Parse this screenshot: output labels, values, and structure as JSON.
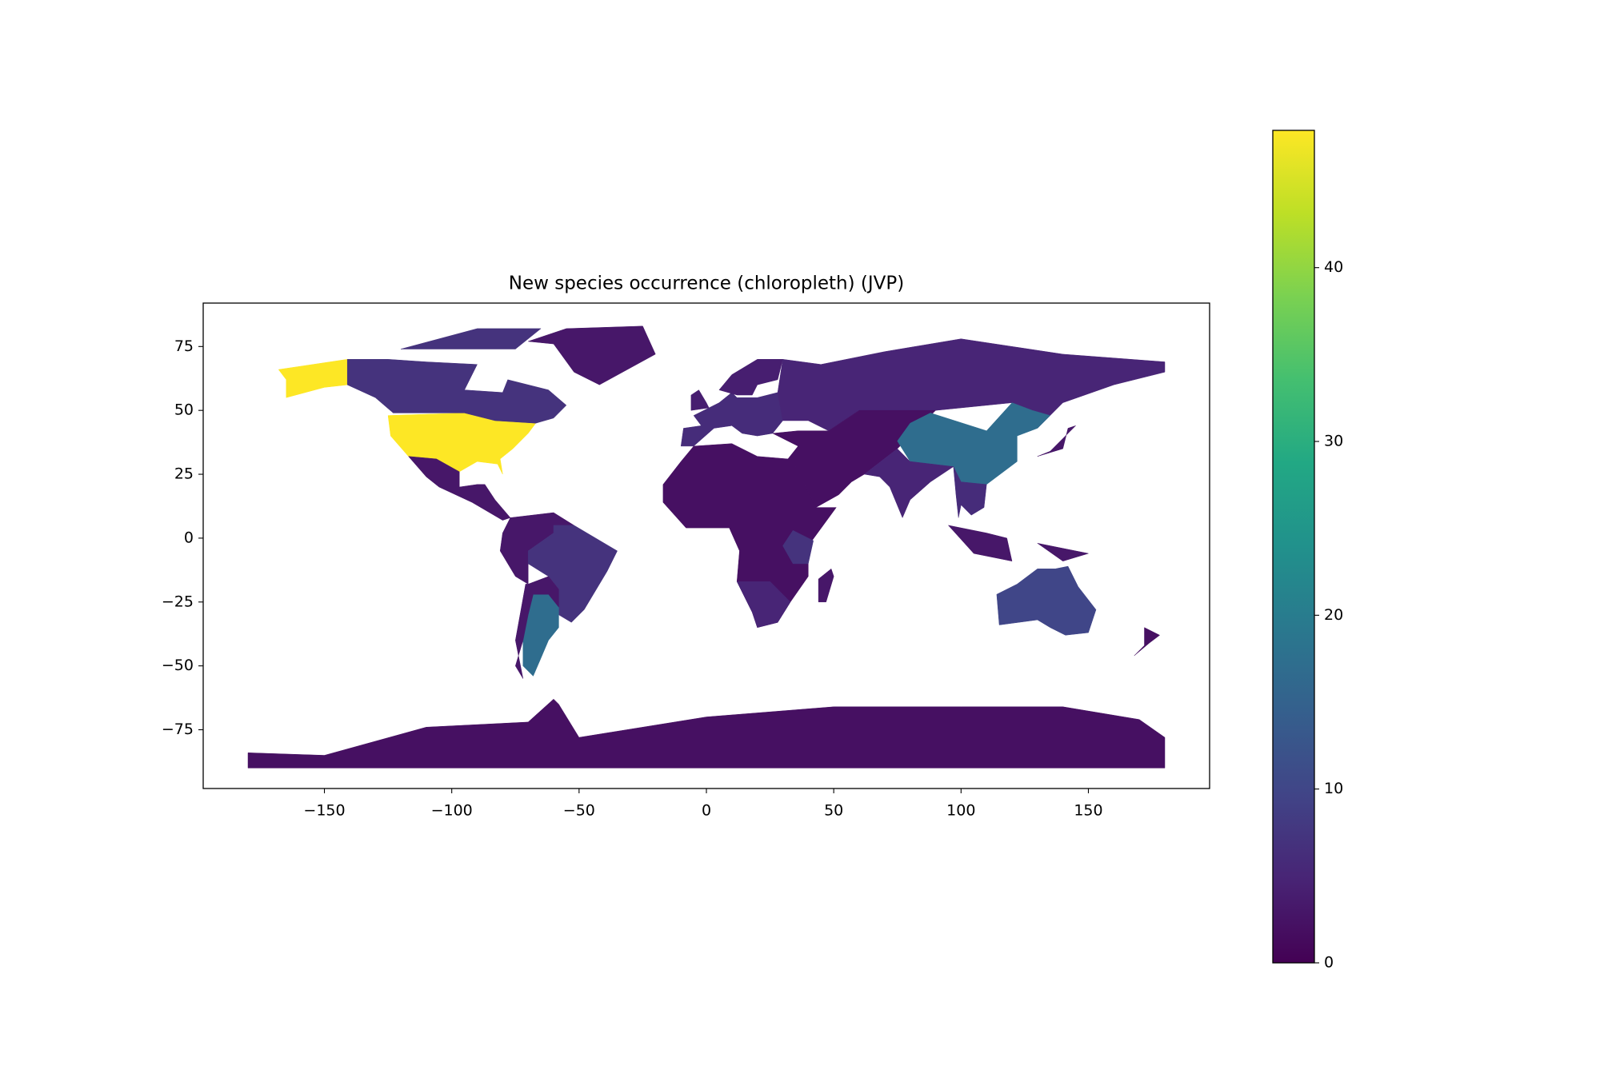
{
  "chart_data": {
    "type": "choropleth",
    "title": "New species occurrence (chloropleth)  (JVP)",
    "colormap": "viridis",
    "values": [
      48,
      7,
      3,
      3,
      3,
      7,
      17,
      3,
      6,
      4,
      4,
      5,
      2,
      5,
      7,
      3,
      2,
      17,
      5,
      6,
      3,
      3,
      10,
      2,
      2
    ],
    "xlim": [
      -197.6,
      197.6
    ],
    "xticks": [
      {
        "value": -150,
        "label": "−150"
      },
      {
        "value": -100,
        "label": "−100"
      },
      {
        "value": -50,
        "label": "−50"
      },
      0,
      50,
      100,
      150
    ],
    "ylim": [
      -98,
      92
    ],
    "yticks": [
      {
        "value": -75,
        "label": "−75"
      },
      {
        "value": -50,
        "label": "−50"
      },
      {
        "value": -25,
        "label": "−25"
      },
      0,
      25,
      50,
      75
    ],
    "colorbar": {
      "lim": [
        0,
        47.9
      ],
      "ticks": [
        0,
        10,
        20,
        30,
        40
      ]
    }
  }
}
